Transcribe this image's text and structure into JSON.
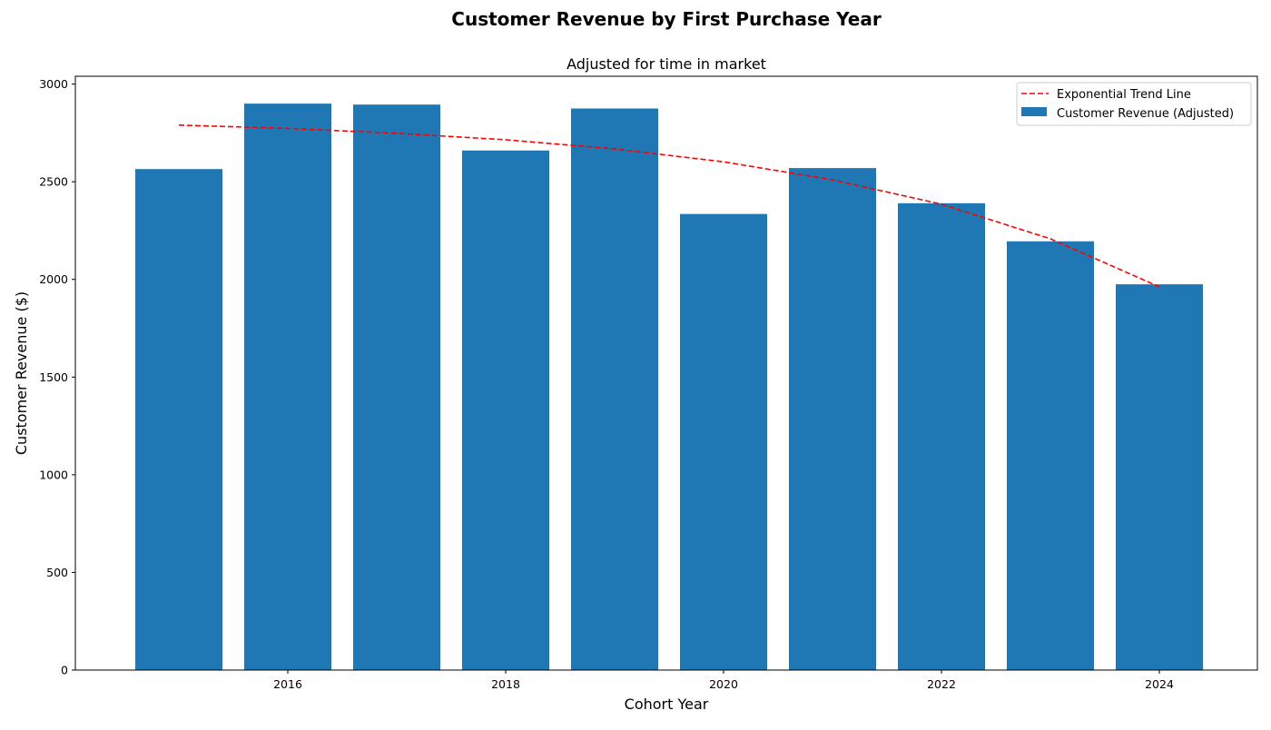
{
  "chart_data": {
    "type": "bar",
    "title": "Customer Revenue by First Purchase Year",
    "subtitle": "Adjusted for time in market",
    "xlabel": "Cohort Year",
    "ylabel": "Customer Revenue ($)",
    "x": [
      2015,
      2016,
      2017,
      2018,
      2019,
      2020,
      2021,
      2022,
      2023,
      2024
    ],
    "xlim": [
      2014.05,
      2024.9
    ],
    "xticks": [
      2016,
      2018,
      2020,
      2022,
      2024
    ],
    "ylim": [
      0,
      3040
    ],
    "yticks": [
      0,
      500,
      1000,
      1500,
      2000,
      2500,
      3000
    ],
    "grid": false,
    "legend_position": "top-right",
    "series": [
      {
        "name": "Customer Revenue (Adjusted)",
        "kind": "bar",
        "color": "#1f77b4",
        "values": [
          2565,
          2900,
          2895,
          2660,
          2875,
          2335,
          2570,
          2390,
          2195,
          1975
        ]
      },
      {
        "name": "Exponential Trend Line",
        "kind": "line",
        "style": "dashed",
        "color": "#ff0000",
        "values": [
          2790,
          2773,
          2748,
          2715,
          2668,
          2602,
          2510,
          2385,
          2208,
          1962
        ]
      }
    ]
  }
}
